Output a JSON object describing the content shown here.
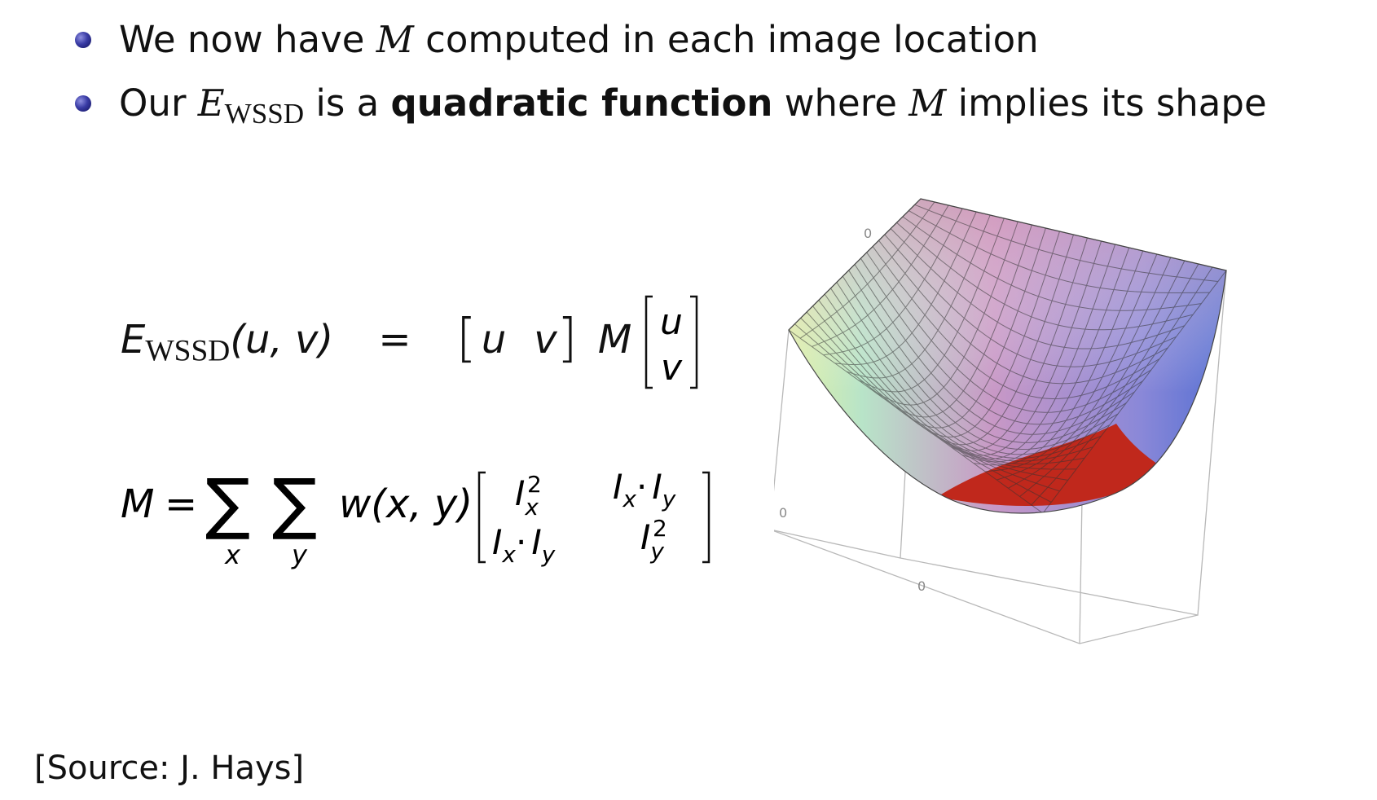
{
  "bullets": [
    {
      "pre": "We now have ",
      "var": "M",
      "post": " computed in each image location"
    },
    {
      "pre": "Our ",
      "var": "E",
      "sub": "WSSD",
      "mid": " is a ",
      "bold": "quadratic function",
      "post2": " where ",
      "var2": "M",
      "post3": " implies its shape"
    }
  ],
  "equation1": {
    "lhs_var": "E",
    "lhs_sub": "WSSD",
    "args": "(u, v)",
    "equals": "=",
    "row_left": "[",
    "row_u": "u",
    "row_v": "v",
    "row_right": "]",
    "M": "M",
    "col_u": "u",
    "col_v": "v"
  },
  "equation2": {
    "lhs": "M",
    "equals": "=",
    "sum_symbol": "∑",
    "sum_x": "x",
    "sum_y": "y",
    "weight": "w(x, y)",
    "m11": "I",
    "m11_sub": "x",
    "m11_sup": "2",
    "m12": "I",
    "m12_sub": "x",
    "m12_dot": "·",
    "m12_b": "I",
    "m12_bsub": "y",
    "m21": "I",
    "m21_sub": "x",
    "m21_dot": "·",
    "m21_b": "I",
    "m21_bsub": "y",
    "m22": "I",
    "m22_sub": "y",
    "m22_sup": "2"
  },
  "plot": {
    "tick_top": "0",
    "tick_left": "0",
    "tick_bottom": "0",
    "surface_color_low": "#c0201a",
    "surface_color_high": "#d490b6"
  },
  "source": "[Source:  J. Hays]"
}
